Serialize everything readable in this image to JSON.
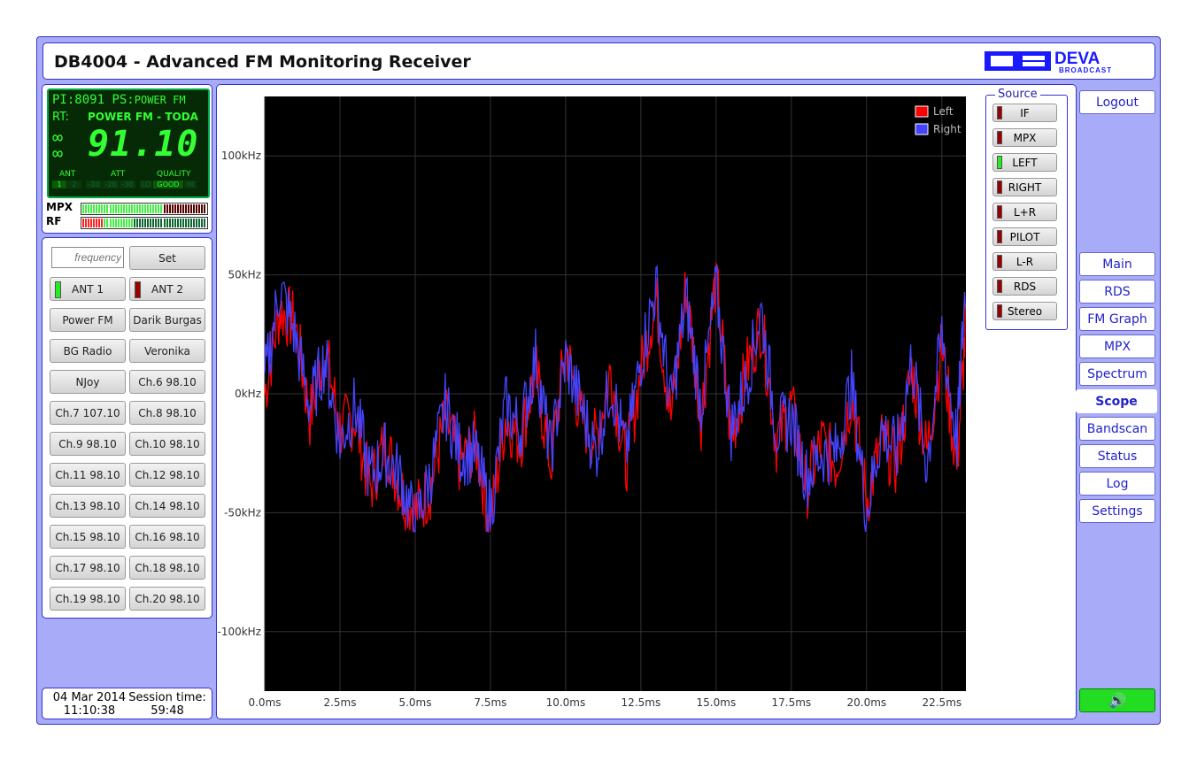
{
  "header": {
    "title": "DB4004 - Advanced FM Monitoring Receiver",
    "logo_text": "DEVA BROADCAST"
  },
  "lcd": {
    "pi_label": "PI:",
    "pi": "8091",
    "ps_label": "PS:",
    "ps": "POWER FM",
    "rt_label": "RT:",
    "rt": "POWER FM - TODA",
    "frequency": "91.10",
    "ant_label": "ANT",
    "ant": [
      "1",
      "2"
    ],
    "att_label": "ATT",
    "att": [
      "-10",
      "-20",
      "-30"
    ],
    "quality_label": "QUALITY",
    "quality": [
      "LO",
      "GOOD",
      "HI"
    ],
    "mpx_label": "MPX",
    "rf_label": "RF",
    "mpx_level": 0.65,
    "rf_level": 0.4
  },
  "controls": {
    "frequency_placeholder": "frequency",
    "set": "Set",
    "ant1": "ANT 1",
    "ant2": "ANT 2",
    "presets": [
      "Power FM",
      "Darik Burgas",
      "BG Radio",
      "Veronika",
      "NJoy",
      "Ch.6 98.10",
      "Ch.7 107.10",
      "Ch.8 98.10",
      "Ch.9 98.10",
      "Ch.10 98.10",
      "Ch.11 98.10",
      "Ch.12 98.10",
      "Ch.13 98.10",
      "Ch.14 98.10",
      "Ch.15 98.10",
      "Ch.16 98.10",
      "Ch.17 98.10",
      "Ch.18 98.10",
      "Ch.19 98.10",
      "Ch.20 98.10"
    ]
  },
  "footer": {
    "date": "04 Mar 2014",
    "time": "11:10:38",
    "session_label": "Session time:",
    "session": "59:48"
  },
  "source": {
    "title": "Source",
    "items": [
      {
        "label": "IF",
        "on": false
      },
      {
        "label": "MPX",
        "on": false
      },
      {
        "label": "LEFT",
        "on": true
      },
      {
        "label": "RIGHT",
        "on": false
      },
      {
        "label": "L+R",
        "on": false
      },
      {
        "label": "PILOT",
        "on": false
      },
      {
        "label": "L-R",
        "on": false
      },
      {
        "label": "RDS",
        "on": false
      },
      {
        "label": "Stereo",
        "on": false
      }
    ]
  },
  "nav": {
    "logout": "Logout",
    "items": [
      "Main",
      "RDS",
      "FM Graph",
      "MPX",
      "Spectrum",
      "Scope",
      "Bandscan",
      "Status",
      "Log",
      "Settings"
    ],
    "active": "Scope"
  },
  "colors": {
    "left": "#ff0000",
    "right": "#4444ff",
    "accent": "#3333cc",
    "speaker": "#22dd22"
  },
  "chart_data": {
    "type": "line",
    "xlabel": "",
    "ylabel": "",
    "xlim": [
      0,
      23.3
    ],
    "ylim": [
      -125,
      125
    ],
    "legend": "top-right",
    "xticks": [
      "0.0ms",
      "2.5ms",
      "5.0ms",
      "7.5ms",
      "10.0ms",
      "12.5ms",
      "15.0ms",
      "17.5ms",
      "20.0ms",
      "22.5ms"
    ],
    "yticks": [
      "100kHz",
      "50kHz",
      "0kHz",
      "-50kHz",
      "-100kHz"
    ],
    "x": [
      0,
      0.5,
      1,
      1.5,
      2,
      2.5,
      3,
      3.5,
      4,
      4.5,
      5,
      5.5,
      6,
      6.5,
      7,
      7.5,
      8,
      8.5,
      9,
      9.5,
      10,
      10.5,
      11,
      11.5,
      12,
      12.5,
      13,
      13.5,
      14,
      14.5,
      15,
      15.5,
      16,
      16.5,
      17,
      17.5,
      18,
      18.5,
      19,
      19.5,
      20,
      20.5,
      21,
      21.5,
      22,
      22.5,
      23,
      23.3
    ],
    "series": [
      {
        "name": "Left",
        "values": [
          0,
          35,
          30,
          -10,
          20,
          -15,
          -10,
          -40,
          -20,
          -40,
          -50,
          -40,
          -10,
          -30,
          -20,
          -55,
          -10,
          -20,
          10,
          -30,
          20,
          -10,
          -20,
          10,
          -30,
          10,
          40,
          -10,
          45,
          -10,
          50,
          -20,
          10,
          30,
          -20,
          -5,
          -40,
          -20,
          -30,
          0,
          -45,
          -20,
          -30,
          10,
          -25,
          20,
          -30,
          30
        ]
      },
      {
        "name": "Right",
        "values": [
          5,
          45,
          25,
          -5,
          15,
          -20,
          -5,
          -35,
          -25,
          -35,
          -55,
          -35,
          -5,
          -25,
          -25,
          -50,
          -5,
          -15,
          15,
          -25,
          15,
          -5,
          -25,
          5,
          -25,
          15,
          45,
          -5,
          40,
          -5,
          45,
          -15,
          5,
          35,
          -15,
          -10,
          -35,
          -25,
          -25,
          5,
          -50,
          -15,
          -25,
          15,
          -30,
          25,
          -20,
          50
        ]
      }
    ]
  }
}
